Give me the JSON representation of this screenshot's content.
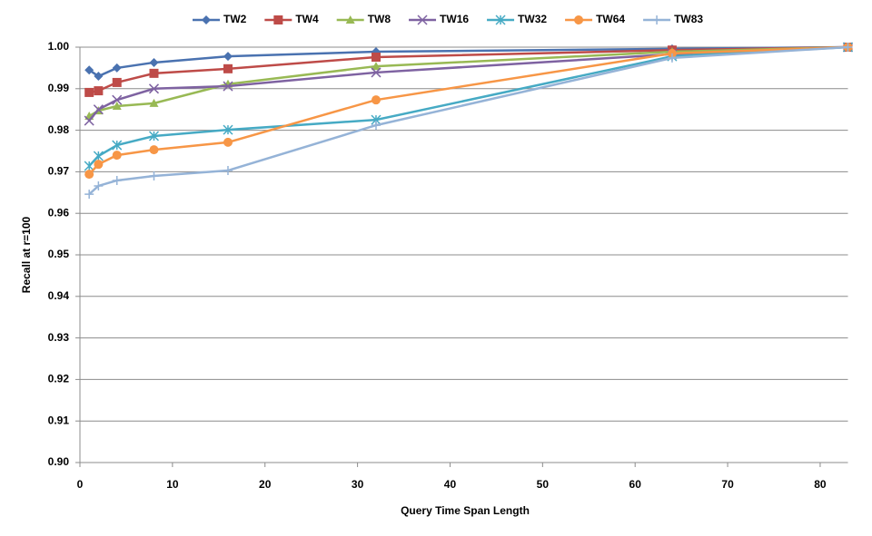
{
  "chart_data": {
    "type": "line",
    "x_label": "Query Time Span Length",
    "y_label": "Recall at r=100",
    "x": [
      1,
      2,
      4,
      8,
      16,
      32,
      64,
      83
    ],
    "series": [
      {
        "name": "TW2",
        "color": "#4a72b0",
        "marker": "diamond",
        "values": [
          0.9945,
          0.993,
          0.995,
          0.9963,
          0.9978,
          0.9989,
          0.9996,
          1.0
        ]
      },
      {
        "name": "TW4",
        "color": "#be4b48",
        "marker": "square",
        "values": [
          0.9891,
          0.9895,
          0.9915,
          0.9937,
          0.9948,
          0.9976,
          0.9993,
          1.0
        ]
      },
      {
        "name": "TW8",
        "color": "#98b954",
        "marker": "triangle",
        "values": [
          0.9834,
          0.9847,
          0.9858,
          0.9865,
          0.9911,
          0.9954,
          0.9989,
          1.0
        ]
      },
      {
        "name": "TW16",
        "color": "#7e62a1",
        "marker": "cross",
        "values": [
          0.9823,
          0.985,
          0.9873,
          0.99,
          0.9906,
          0.9939,
          0.9983,
          1.0
        ]
      },
      {
        "name": "TW32",
        "color": "#46aac4",
        "marker": "star",
        "values": [
          0.9714,
          0.9738,
          0.9764,
          0.9786,
          0.9801,
          0.9825,
          0.9978,
          1.0
        ]
      },
      {
        "name": "TW64",
        "color": "#f79646",
        "marker": "circle",
        "values": [
          0.9694,
          0.9718,
          0.974,
          0.9753,
          0.9771,
          0.9873,
          0.9985,
          1.0
        ]
      },
      {
        "name": "TW83",
        "color": "#95b3d7",
        "marker": "plus",
        "values": [
          0.9646,
          0.9666,
          0.9679,
          0.969,
          0.9703,
          0.9812,
          0.9974,
          1.0
        ]
      }
    ],
    "xlim": [
      0,
      83
    ],
    "xticks": [
      0,
      10,
      20,
      30,
      40,
      50,
      60,
      70,
      80
    ],
    "ylim": [
      0.9,
      1.0
    ],
    "yticks": [
      {
        "value": 0.9,
        "label": "0.90"
      },
      0.91,
      0.92,
      0.93,
      0.94,
      0.95,
      0.96,
      0.97,
      0.98,
      0.99,
      {
        "value": 1.0,
        "label": "1.00"
      }
    ],
    "grid": true,
    "legend": "top"
  }
}
